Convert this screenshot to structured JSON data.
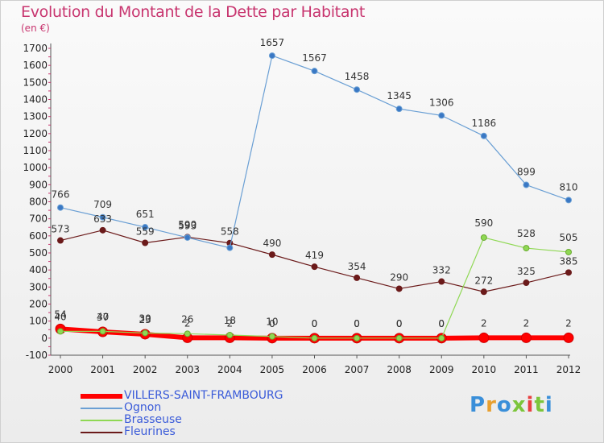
{
  "title": "Evolution du Montant de la Dette par Habitant",
  "unit": "(en €)",
  "brand": "Proxiti",
  "chart_data": {
    "type": "line",
    "x": [
      "2000",
      "2001",
      "2002",
      "2003",
      "2004",
      "2005",
      "2006",
      "2007",
      "2008",
      "2009",
      "2010",
      "2011",
      "2012"
    ],
    "ylim": [
      -100,
      1700
    ],
    "yticks": [
      -100,
      0,
      100,
      200,
      300,
      400,
      500,
      600,
      700,
      800,
      900,
      1000,
      1100,
      1200,
      1300,
      1400,
      1500,
      1600,
      1700
    ],
    "grid": false,
    "legend_position": "bottom-left",
    "series": [
      {
        "name": "VILLERS-SAINT-FRAMBOURG",
        "color": "#ff0000",
        "values": [
          54,
          37,
          23,
          2,
          2,
          0,
          0,
          0,
          0,
          0,
          2,
          2,
          2
        ],
        "labels": [
          "54",
          "37",
          "23",
          "2",
          "2",
          "0",
          "0",
          "0",
          "0",
          "0",
          "2",
          "2",
          "2"
        ]
      },
      {
        "name": "Ognon",
        "color": "#6a9fd4",
        "values": [
          766,
          709,
          651,
          590,
          530,
          1657,
          1567,
          1458,
          1345,
          1306,
          1186,
          899,
          810
        ],
        "labels": [
          "766",
          "709",
          "651",
          "590",
          "",
          "1657",
          "1567",
          "1458",
          "1345",
          "1306",
          "1186",
          "899",
          "810"
        ]
      },
      {
        "name": "Brasseuse",
        "color": "#8fd854",
        "values": [
          40,
          40,
          30,
          26,
          18,
          10,
          0,
          0,
          0,
          0,
          590,
          528,
          505
        ],
        "labels": [
          "40",
          "40",
          "30",
          "26",
          "18",
          "10",
          "0",
          "0",
          "0",
          "0",
          "590",
          "528",
          "505"
        ]
      },
      {
        "name": "Fleurines",
        "color": "#6b1a1a",
        "values": [
          573,
          633,
          559,
          593,
          558,
          490,
          419,
          354,
          290,
          332,
          272,
          325,
          385
        ],
        "labels": [
          "573",
          "633",
          "559",
          "593",
          "558",
          "490",
          "419",
          "354",
          "290",
          "332",
          "272",
          "325",
          "385"
        ]
      }
    ]
  }
}
